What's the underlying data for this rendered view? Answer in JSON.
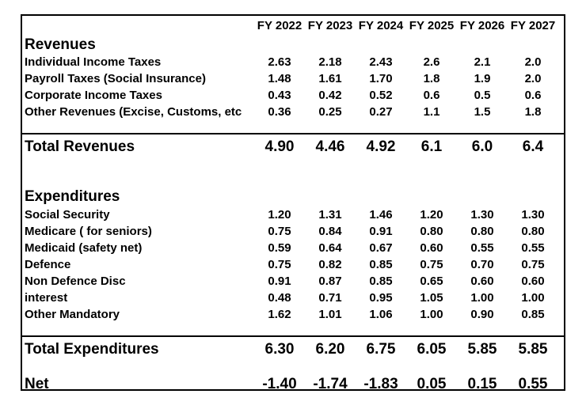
{
  "years": [
    "FY 2022",
    "FY 2023",
    "FY 2024",
    "FY 2025",
    "FY 2026",
    "FY 2027"
  ],
  "revenues": {
    "heading": "Revenues",
    "rows": [
      {
        "label": "Individual Income Taxes",
        "values": [
          "2.63",
          "2.18",
          "2.43",
          "2.6",
          "2.1",
          "2.0"
        ]
      },
      {
        "label": "Payroll Taxes (Social Insurance)",
        "values": [
          "1.48",
          "1.61",
          "1.70",
          "1.8",
          "1.9",
          "2.0"
        ]
      },
      {
        "label": "Corporate Income Taxes",
        "values": [
          "0.43",
          "0.42",
          "0.52",
          "0.6",
          "0.5",
          "0.6"
        ]
      },
      {
        "label": "Other Revenues (Excise, Customs, etc",
        "values": [
          "0.36",
          "0.25",
          "0.27",
          "1.1",
          "1.5",
          "1.8"
        ]
      }
    ],
    "total": {
      "label": "Total Revenues",
      "values": [
        "4.90",
        "4.46",
        "4.92",
        "6.1",
        "6.0",
        "6.4"
      ]
    }
  },
  "expenditures": {
    "heading": "Expenditures",
    "rows": [
      {
        "label": "Social Security",
        "values": [
          "1.20",
          "1.31",
          "1.46",
          "1.20",
          "1.30",
          "1.30"
        ]
      },
      {
        "label": "Medicare ( for seniors)",
        "values": [
          "0.75",
          "0.84",
          "0.91",
          "0.80",
          "0.80",
          "0.80"
        ]
      },
      {
        "label": "Medicaid (safety net)",
        "values": [
          "0.59",
          "0.64",
          "0.67",
          "0.60",
          "0.55",
          "0.55"
        ]
      },
      {
        "label": "Defence",
        "values": [
          "0.75",
          "0.82",
          "0.85",
          "0.75",
          "0.70",
          "0.75"
        ]
      },
      {
        "label": "Non Defence Disc",
        "values": [
          "0.91",
          "0.87",
          "0.85",
          "0.65",
          "0.60",
          "0.60"
        ]
      },
      {
        "label": "interest",
        "values": [
          "0.48",
          "0.71",
          "0.95",
          "1.05",
          "1.00",
          "1.00"
        ]
      },
      {
        "label": "Other Mandatory",
        "values": [
          "1.62",
          "1.01",
          "1.06",
          "1.00",
          "0.90",
          "0.85"
        ]
      }
    ],
    "total": {
      "label": "Total Expenditures",
      "values": [
        "6.30",
        "6.20",
        "6.75",
        "6.05",
        "5.85",
        "5.85"
      ]
    }
  },
  "net": {
    "label": "Net",
    "values": [
      "-1.40",
      "-1.74",
      "-1.83",
      "0.05",
      "0.15",
      "0.55"
    ]
  }
}
